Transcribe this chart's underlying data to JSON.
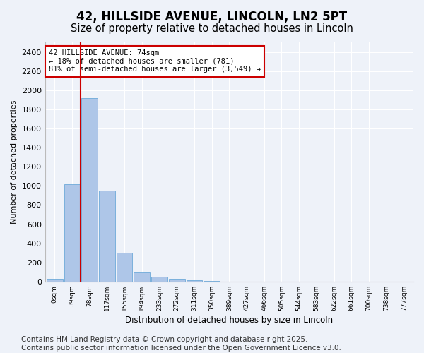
{
  "title1": "42, HILLSIDE AVENUE, LINCOLN, LN2 5PT",
  "title2": "Size of property relative to detached houses in Lincoln",
  "xlabel": "Distribution of detached houses by size in Lincoln",
  "ylabel": "Number of detached properties",
  "bar_values": [
    30,
    1020,
    1920,
    950,
    300,
    100,
    50,
    30,
    15,
    5,
    2,
    1,
    0,
    0,
    0,
    0,
    0,
    0,
    0,
    0,
    0
  ],
  "bar_labels": [
    "0sqm",
    "39sqm",
    "78sqm",
    "117sqm",
    "155sqm",
    "194sqm",
    "233sqm",
    "272sqm",
    "311sqm",
    "350sqm",
    "389sqm",
    "427sqm",
    "466sqm",
    "505sqm",
    "544sqm",
    "583sqm",
    "622sqm",
    "661sqm",
    "700sqm",
    "738sqm",
    "777sqm"
  ],
  "bar_color": "#aec6e8",
  "bar_edge_color": "#5a9fd4",
  "vline_color": "#cc0000",
  "annotation_text": "42 HILLSIDE AVENUE: 74sqm\n← 18% of detached houses are smaller (781)\n81% of semi-detached houses are larger (3,549) →",
  "annotation_box_color": "#cc0000",
  "ylim": [
    0,
    2500
  ],
  "yticks": [
    0,
    200,
    400,
    600,
    800,
    1000,
    1200,
    1400,
    1600,
    1800,
    2000,
    2200,
    2400
  ],
  "background_color": "#eef2f9",
  "grid_color": "#ffffff",
  "footer_text": "Contains HM Land Registry data © Crown copyright and database right 2025.\nContains public sector information licensed under the Open Government Licence v3.0.",
  "title_fontsize": 12,
  "subtitle_fontsize": 10.5,
  "footer_fontsize": 7.5
}
